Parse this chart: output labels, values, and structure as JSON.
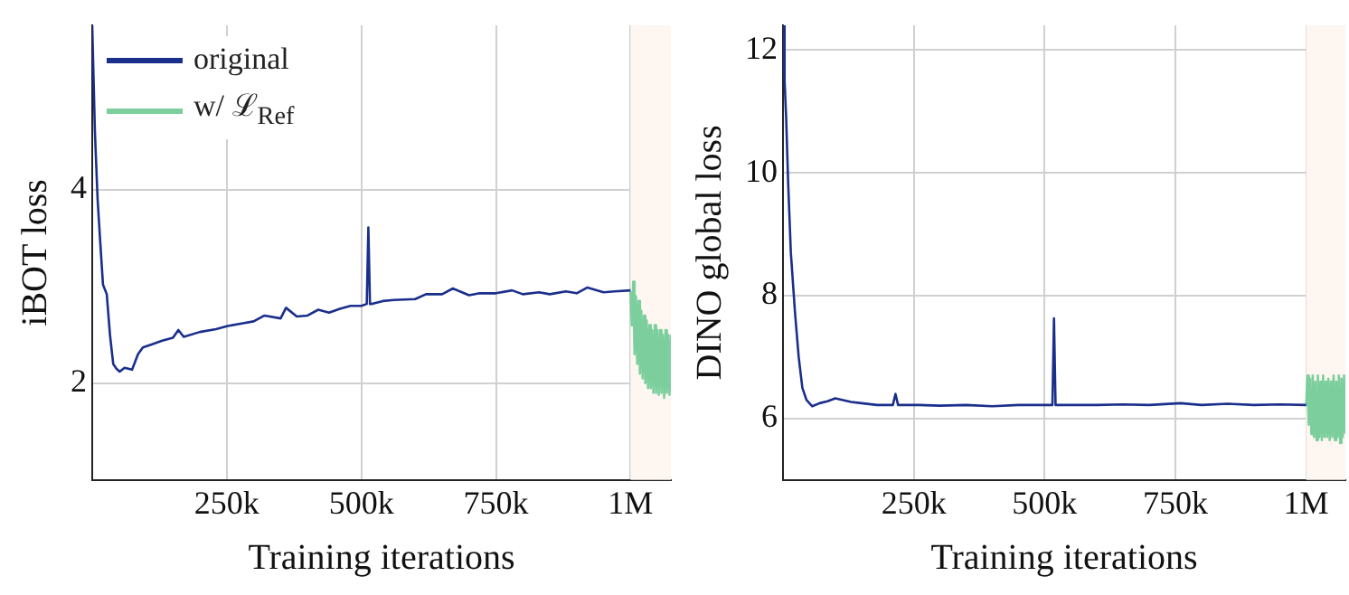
{
  "chart_data": [
    {
      "type": "line",
      "xlabel": "Training iterations",
      "ylabel": "iBOT loss",
      "xlim": [
        0,
        1075000
      ],
      "ylim": [
        1,
        5.7
      ],
      "xticks": [
        {
          "value": 250000,
          "label": "250k"
        },
        {
          "value": 500000,
          "label": "500k"
        },
        {
          "value": 750000,
          "label": "750k"
        },
        {
          "value": 1000000,
          "label": "1M"
        }
      ],
      "yticks": [
        2,
        4
      ],
      "grid": true,
      "legend": "top left",
      "marker": "none",
      "line_style": "solid",
      "bands": [
        {
          "axis": "x",
          "from": 1000000,
          "to": 1075000,
          "color": "#fdf6f1"
        }
      ],
      "series": [
        {
          "name": "original",
          "color": "#1a2e8c",
          "x": [
            0,
            5000,
            10000,
            15000,
            20000,
            27000,
            33000,
            39000,
            45000,
            51000,
            60000,
            74000,
            85000,
            94000,
            110000,
            130000,
            150000,
            160000,
            170000,
            200000,
            230000,
            250000,
            280000,
            300000,
            320000,
            350000,
            360000,
            380000,
            400000,
            420000,
            440000,
            460000,
            480000,
            500000,
            510000,
            513000,
            516000,
            520000,
            540000,
            560000,
            600000,
            620000,
            650000,
            670000,
            700000,
            720000,
            750000,
            780000,
            800000,
            830000,
            850000,
            880000,
            900000,
            920000,
            950000,
            970000,
            1000000
          ],
          "values": [
            5.7,
            4.6,
            3.9,
            3.45,
            3.02,
            2.92,
            2.5,
            2.2,
            2.15,
            2.12,
            2.16,
            2.14,
            2.3,
            2.37,
            2.4,
            2.44,
            2.47,
            2.55,
            2.48,
            2.53,
            2.56,
            2.59,
            2.62,
            2.64,
            2.7,
            2.67,
            2.78,
            2.69,
            2.7,
            2.76,
            2.73,
            2.77,
            2.8,
            2.8,
            2.82,
            3.61,
            2.82,
            2.82,
            2.85,
            2.86,
            2.87,
            2.92,
            2.92,
            2.98,
            2.91,
            2.93,
            2.93,
            2.96,
            2.92,
            2.94,
            2.92,
            2.95,
            2.93,
            2.99,
            2.94,
            2.95,
            2.96
          ]
        },
        {
          "name": "w/ ℒ$_{Ref}$",
          "color": "#7ccf9d",
          "x": [
            1000000,
            1002500,
            1005000,
            1007500,
            1010000,
            1012500,
            1015000,
            1017500,
            1020000,
            1022500,
            1025000,
            1027500,
            1030000,
            1032500,
            1035000,
            1037500,
            1040000,
            1042500,
            1045000,
            1047500,
            1050000,
            1052500,
            1055000,
            1057500,
            1060000,
            1062500,
            1065000,
            1067500,
            1070000,
            1072500,
            1075000
          ],
          "values": [
            2.95,
            2.6,
            3.05,
            2.3,
            2.9,
            2.2,
            2.85,
            2.1,
            2.75,
            2.05,
            2.7,
            2.0,
            2.65,
            1.95,
            2.6,
            1.95,
            2.55,
            1.9,
            2.6,
            1.9,
            2.55,
            1.88,
            2.55,
            1.9,
            2.5,
            1.85,
            2.55,
            1.9,
            2.5,
            1.88,
            2.5
          ]
        }
      ]
    },
    {
      "type": "line",
      "xlabel": "Training iterations",
      "ylabel": "DINO global loss",
      "xlim": [
        0,
        1075000
      ],
      "ylim": [
        5,
        12.4
      ],
      "xticks": [
        {
          "value": 250000,
          "label": "250k"
        },
        {
          "value": 500000,
          "label": "500k"
        },
        {
          "value": 750000,
          "label": "750k"
        },
        {
          "value": 1000000,
          "label": "1M"
        }
      ],
      "yticks": [
        6,
        8,
        10,
        12
      ],
      "grid": true,
      "marker": "none",
      "line_style": "solid",
      "bands": [
        {
          "axis": "x",
          "from": 1000000,
          "to": 1075000,
          "color": "#fdf6f1"
        }
      ],
      "series": [
        {
          "color": "#1a2e8c",
          "x": [
            0,
            3000,
            6000,
            10000,
            15000,
            23000,
            30000,
            37000,
            45000,
            56000,
            70000,
            85000,
            100000,
            115000,
            130000,
            150000,
            180000,
            210000,
            215000,
            220000,
            260000,
            300000,
            350000,
            400000,
            450000,
            500000,
            515000,
            518000,
            521000,
            530000,
            600000,
            650000,
            700000,
            760000,
            800000,
            850000,
            900000,
            950000,
            1000000
          ],
          "values": [
            12.4,
            11.5,
            10.9,
            9.8,
            8.7,
            7.72,
            7.0,
            6.5,
            6.3,
            6.2,
            6.25,
            6.28,
            6.33,
            6.3,
            6.27,
            6.25,
            6.22,
            6.22,
            6.4,
            6.22,
            6.22,
            6.21,
            6.22,
            6.2,
            6.22,
            6.22,
            6.22,
            7.63,
            6.22,
            6.22,
            6.22,
            6.23,
            6.22,
            6.25,
            6.22,
            6.24,
            6.22,
            6.23,
            6.22
          ]
        },
        {
          "color": "#7ccf9d",
          "x": [
            1000000,
            1002500,
            1005000,
            1007500,
            1010000,
            1012500,
            1015000,
            1017500,
            1020000,
            1022500,
            1025000,
            1027500,
            1030000,
            1032500,
            1035000,
            1037500,
            1040000,
            1042500,
            1045000,
            1047500,
            1050000,
            1052500,
            1055000,
            1057500,
            1060000,
            1062500,
            1065000,
            1067500,
            1070000,
            1072500,
            1075000
          ],
          "values": [
            6.2,
            6.7,
            5.9,
            6.65,
            5.75,
            6.7,
            5.7,
            6.6,
            5.65,
            6.7,
            5.7,
            6.6,
            5.65,
            6.7,
            5.7,
            6.6,
            5.7,
            6.65,
            5.65,
            6.6,
            5.7,
            6.7,
            5.65,
            6.6,
            5.7,
            6.7,
            5.6,
            6.65,
            5.7,
            6.7,
            5.75
          ]
        }
      ]
    }
  ]
}
